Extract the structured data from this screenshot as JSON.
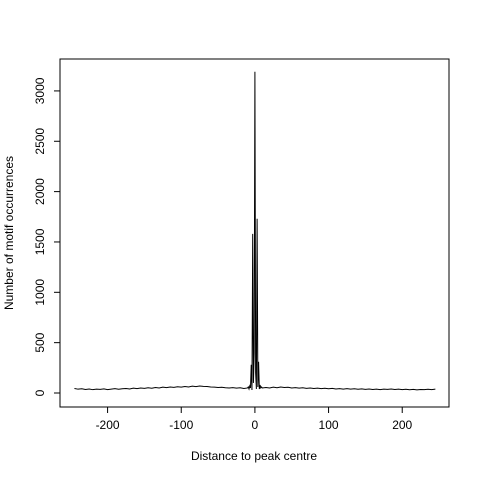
{
  "chart_data": {
    "type": "line",
    "x_label": "Distance to peak centre",
    "y_label": "Number of motif occurrences",
    "color": "#000000",
    "x": [
      -245,
      -240,
      -235,
      -230,
      -225,
      -220,
      -215,
      -210,
      -205,
      -200,
      -195,
      -190,
      -185,
      -180,
      -175,
      -170,
      -165,
      -160,
      -155,
      -150,
      -145,
      -140,
      -135,
      -130,
      -125,
      -120,
      -115,
      -110,
      -105,
      -100,
      -95,
      -90,
      -85,
      -80,
      -75,
      -70,
      -65,
      -60,
      -55,
      -50,
      -45,
      -40,
      -35,
      -30,
      -25,
      -20,
      -15,
      -10,
      -9,
      -8,
      -7,
      -6,
      -5,
      -4,
      -3,
      -2,
      -1,
      0,
      1,
      2,
      3,
      4,
      5,
      6,
      7,
      8,
      9,
      10,
      15,
      20,
      25,
      30,
      35,
      40,
      45,
      50,
      55,
      60,
      65,
      70,
      75,
      80,
      85,
      90,
      95,
      100,
      105,
      110,
      115,
      120,
      125,
      130,
      135,
      140,
      145,
      150,
      155,
      160,
      165,
      170,
      175,
      180,
      185,
      190,
      195,
      200,
      205,
      210,
      215,
      220,
      225,
      230,
      235,
      240,
      245
    ],
    "values": [
      45,
      38,
      42,
      35,
      40,
      33,
      38,
      36,
      41,
      34,
      39,
      43,
      37,
      42,
      45,
      40,
      48,
      44,
      50,
      46,
      52,
      47,
      55,
      50,
      58,
      53,
      60,
      56,
      62,
      58,
      65,
      60,
      68,
      63,
      70,
      66,
      64,
      60,
      58,
      55,
      57,
      52,
      50,
      54,
      48,
      52,
      45,
      50,
      60,
      40,
      70,
      50,
      280,
      30,
      1580,
      100,
      400,
      3190,
      200,
      40,
      1730,
      60,
      310,
      40,
      80,
      50,
      60,
      50,
      55,
      50,
      58,
      52,
      60,
      55,
      57,
      50,
      54,
      48,
      52,
      46,
      50,
      45,
      49,
      43,
      47,
      42,
      46,
      40,
      44,
      39,
      43,
      38,
      42,
      37,
      41,
      36,
      40,
      35,
      39,
      34,
      38,
      36,
      40,
      35,
      38,
      33,
      37,
      32,
      36,
      31,
      35,
      33,
      37,
      34,
      38
    ],
    "xlim": [
      -264.6,
      263.5
    ],
    "ylim": [
      -139,
      3317
    ],
    "xticks": [
      -200,
      -100,
      0,
      100,
      200
    ],
    "yticks": [
      0,
      500,
      1000,
      1500,
      2000,
      2500,
      3000
    ]
  }
}
